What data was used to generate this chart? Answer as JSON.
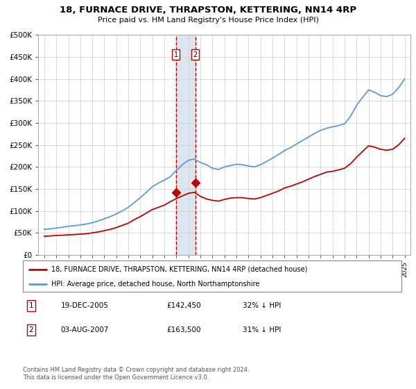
{
  "title": "18, FURNACE DRIVE, THRAPSTON, KETTERING, NN14 4RP",
  "subtitle": "Price paid vs. HM Land Registry's House Price Index (HPI)",
  "legend_line1": "18, FURNACE DRIVE, THRAPSTON, KETTERING, NN14 4RP (detached house)",
  "legend_line2": "HPI: Average price, detached house, North Northamptonshire",
  "footnote": "Contains HM Land Registry data © Crown copyright and database right 2024.\nThis data is licensed under the Open Government Licence v3.0.",
  "table_rows": [
    {
      "label": "1",
      "date": "19-DEC-2005",
      "price": "£142,450",
      "hpi": "32% ↓ HPI"
    },
    {
      "label": "2",
      "date": "03-AUG-2007",
      "price": "£163,500",
      "hpi": "31% ↓ HPI"
    }
  ],
  "sale1_year": 2005.96,
  "sale1_price": 142450,
  "sale2_year": 2007.58,
  "sale2_price": 163500,
  "hpi_color": "#5b9bd5",
  "sale_color": "#c00000",
  "vline_color": "#c00000",
  "vband_color": "#dce6f1",
  "ylim": [
    0,
    500000
  ],
  "yticks": [
    0,
    50000,
    100000,
    150000,
    200000,
    250000,
    300000,
    350000,
    400000,
    450000,
    500000
  ],
  "ytick_labels": [
    "£0",
    "£50K",
    "£100K",
    "£150K",
    "£200K",
    "£250K",
    "£300K",
    "£350K",
    "£400K",
    "£450K",
    "£500K"
  ],
  "xlim_start": 1994.5,
  "xlim_end": 2025.5,
  "hpi_years": [
    1995,
    1995.5,
    1996,
    1996.5,
    1997,
    1997.5,
    1998,
    1998.5,
    1999,
    1999.5,
    2000,
    2000.5,
    2001,
    2001.5,
    2002,
    2002.5,
    2003,
    2003.5,
    2004,
    2004.5,
    2005,
    2005.5,
    2006,
    2006.5,
    2007,
    2007.5,
    2008,
    2008.5,
    2009,
    2009.5,
    2010,
    2010.5,
    2011,
    2011.5,
    2012,
    2012.5,
    2013,
    2013.5,
    2014,
    2014.5,
    2015,
    2015.5,
    2016,
    2016.5,
    2017,
    2017.5,
    2018,
    2018.5,
    2019,
    2019.5,
    2020,
    2020.5,
    2021,
    2021.5,
    2022,
    2022.5,
    2023,
    2023.5,
    2024,
    2024.5,
    2025
  ],
  "hpi_values": [
    58000,
    59000,
    61000,
    62500,
    65000,
    66000,
    68000,
    70000,
    73000,
    77000,
    82000,
    87000,
    93000,
    100000,
    108000,
    119000,
    130000,
    142000,
    155000,
    163000,
    170000,
    178000,
    192000,
    205000,
    215000,
    218000,
    210000,
    205000,
    197000,
    194000,
    200000,
    203000,
    206000,
    205000,
    202000,
    200000,
    205000,
    212000,
    220000,
    228000,
    237000,
    244000,
    252000,
    260000,
    268000,
    276000,
    283000,
    288000,
    291000,
    294000,
    298000,
    315000,
    340000,
    358000,
    375000,
    370000,
    362000,
    360000,
    365000,
    380000,
    400000
  ],
  "sale_years": [
    1995,
    1995.5,
    1996,
    1996.5,
    1997,
    1997.5,
    1998,
    1998.5,
    1999,
    1999.5,
    2000,
    2000.5,
    2001,
    2001.5,
    2002,
    2002.5,
    2003,
    2003.5,
    2004,
    2004.5,
    2005,
    2005.5,
    2006,
    2006.5,
    2007,
    2007.5,
    2008,
    2008.5,
    2009,
    2009.5,
    2010,
    2010.5,
    2011,
    2011.5,
    2012,
    2012.5,
    2013,
    2013.5,
    2014,
    2014.5,
    2015,
    2015.5,
    2016,
    2016.5,
    2017,
    2017.5,
    2018,
    2018.5,
    2019,
    2019.5,
    2020,
    2020.5,
    2021,
    2021.5,
    2022,
    2022.5,
    2023,
    2023.5,
    2024,
    2024.5,
    2025
  ],
  "sale_values": [
    42000,
    43000,
    44000,
    44500,
    45500,
    46000,
    47000,
    48000,
    50000,
    52000,
    55000,
    58000,
    62000,
    67000,
    72000,
    80000,
    87000,
    95000,
    103000,
    108000,
    113000,
    121000,
    128000,
    134000,
    140000,
    142000,
    133000,
    127000,
    124000,
    122000,
    126000,
    129000,
    130000,
    130000,
    128000,
    127000,
    130000,
    135000,
    140000,
    145000,
    152000,
    156000,
    161000,
    166000,
    172000,
    178000,
    183000,
    188000,
    190000,
    193000,
    197000,
    207000,
    222000,
    235000,
    248000,
    245000,
    240000,
    238000,
    240000,
    250000,
    265000
  ]
}
